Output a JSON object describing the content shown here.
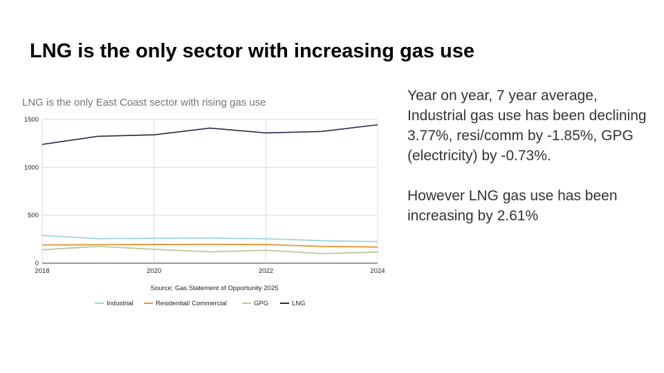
{
  "slide": {
    "title": "LNG is the only sector with increasing gas use",
    "paragraphs": [
      "Year on year, 7 year average, Industrial gas use has been declining 3.77%, resi/comm by -1.85%, GPG (electricity) by -0.73%.",
      "However LNG gas use has been increasing by 2.61%"
    ]
  },
  "chart_data": {
    "type": "line",
    "title": "LNG is the only East Coast sector with rising gas use",
    "xlabel": "Source; Gas Statement of Opportunity 2025",
    "ylabel": "",
    "x": [
      2018,
      2019,
      2020,
      2021,
      2022,
      2023,
      2024
    ],
    "xticks": [
      "2018",
      "2020",
      "2022",
      "2024"
    ],
    "yticks": [
      "0",
      "500",
      "1000",
      "1500"
    ],
    "xlim": [
      2018,
      2024
    ],
    "ylim": [
      0,
      1500
    ],
    "grid": true,
    "legend_position": "bottom",
    "series": [
      {
        "name": "Industrial",
        "color": "#9fd9d5",
        "values": [
          290,
          255,
          260,
          262,
          255,
          235,
          225
        ]
      },
      {
        "name": "Residential/ Commercial",
        "color": "#e8912e",
        "values": [
          190,
          192,
          195,
          197,
          194,
          175,
          168
        ]
      },
      {
        "name": "GPG",
        "color": "#b4c99a",
        "values": [
          140,
          175,
          145,
          118,
          135,
          100,
          115
        ]
      },
      {
        "name": "LNG",
        "color": "#272843",
        "values": [
          1240,
          1325,
          1340,
          1410,
          1360,
          1375,
          1445
        ]
      }
    ]
  }
}
